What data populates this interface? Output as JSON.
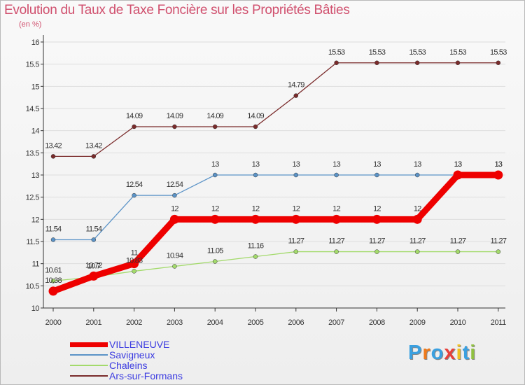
{
  "title": "Evolution du Taux de Taxe Foncière sur les Propriétés Bâties",
  "subtitle": "(en %)",
  "chart_data": {
    "type": "line",
    "title": "Evolution du Taux de Taxe Foncière sur les Propriétés Bâties",
    "ylabel": "(en %)",
    "xlabel": "",
    "categories": [
      "2000",
      "2001",
      "2002",
      "2003",
      "2004",
      "2005",
      "2006",
      "2007",
      "2008",
      "2009",
      "2010",
      "2011"
    ],
    "ylim": [
      10,
      16
    ],
    "yticks": [
      "10",
      "10.5",
      "11",
      "11.5",
      "12",
      "12.5",
      "13",
      "13.5",
      "14",
      "14.5",
      "15",
      "15.5",
      "16"
    ],
    "series": [
      {
        "name": "VILLENEUVE",
        "color": "#ee0000",
        "values": [
          10.38,
          10.72,
          11,
          12,
          12,
          12,
          12,
          12,
          12,
          12,
          13,
          13
        ],
        "labels": [
          "10.38",
          "10.72",
          "11",
          "12",
          "12",
          "12",
          "12",
          "12",
          "12",
          "12",
          "13",
          "13"
        ]
      },
      {
        "name": "Savigneux",
        "color": "#5b93c7",
        "values": [
          11.54,
          11.54,
          12.54,
          12.54,
          13,
          13,
          13,
          13,
          13,
          13,
          13,
          13
        ],
        "labels": [
          "11.54",
          "11.54",
          "12.54",
          "12.54",
          "13",
          "13",
          "13",
          "13",
          "13",
          "13",
          "13",
          "13"
        ]
      },
      {
        "name": "Chaleins",
        "color": "#a3da6b",
        "values": [
          10.61,
          10.7,
          10.83,
          10.94,
          11.05,
          11.16,
          11.27,
          11.27,
          11.27,
          11.27,
          11.27,
          11.27
        ],
        "labels": [
          "10.61",
          "10.7",
          "10.83",
          "10.94",
          "11.05",
          "11.16",
          "11.27",
          "11.27",
          "11.27",
          "11.27",
          "11.27",
          "11.27"
        ]
      },
      {
        "name": "Ars-sur-Formans",
        "color": "#7a2b2b",
        "values": [
          13.42,
          13.42,
          14.09,
          14.09,
          14.09,
          14.09,
          14.79,
          15.53,
          15.53,
          15.53,
          15.53,
          15.53
        ],
        "labels": [
          "13.42",
          "13.42",
          "14.09",
          "14.09",
          "14.09",
          "14.09",
          "14.79",
          "15.53",
          "15.53",
          "15.53",
          "15.53",
          "15.53"
        ]
      }
    ]
  },
  "legend": [
    {
      "label": "VILLENEUVE"
    },
    {
      "label": "Savigneux"
    },
    {
      "label": "Chaleins"
    },
    {
      "label": "Ars-sur-Formans"
    }
  ],
  "logo": {
    "text": "Proxiti",
    "letters": [
      "P",
      "r",
      "o",
      "x",
      "i",
      "t",
      "i"
    ],
    "colors": [
      "#3aa0e0",
      "#f07a1a",
      "#3aa0e0",
      "#e8403a",
      "#f0c020",
      "#3aa0e0",
      "#90c040"
    ]
  }
}
